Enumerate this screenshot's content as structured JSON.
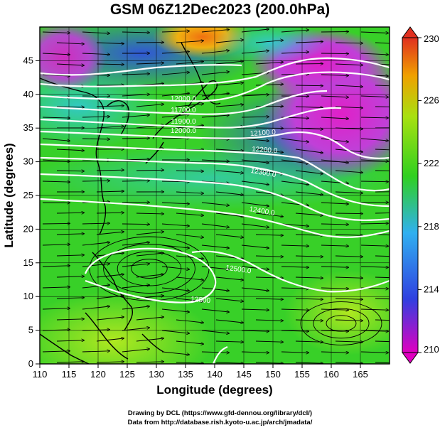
{
  "title": "GSM 06Z12Dec2023 (200.0hPa)",
  "x_axis": {
    "label": "Longitude (degrees)",
    "range": [
      110,
      170
    ],
    "ticks": [
      "110",
      "115",
      "120",
      "125",
      "130",
      "135",
      "140",
      "145",
      "150",
      "155",
      "160",
      "165"
    ]
  },
  "y_axis": {
    "label": "Latitude  (degrees)",
    "range": [
      0,
      50
    ],
    "ticks": [
      "0",
      "5",
      "10",
      "15",
      "20",
      "25",
      "30",
      "35",
      "40",
      "45"
    ]
  },
  "colorbar": {
    "ticks": [
      "210",
      "214",
      "218",
      "222",
      "226",
      "230"
    ],
    "range": [
      210,
      230
    ],
    "colors": [
      "#e000c0",
      "#3040e0",
      "#30b0f0",
      "#30d020",
      "#a8e010",
      "#f0a000",
      "#e03020"
    ]
  },
  "contour_labels": [
    {
      "text": "12000.0"
    },
    {
      "text": "11700.0"
    },
    {
      "text": "11900.0"
    },
    {
      "text": "12000.0"
    },
    {
      "text": "12100.0"
    },
    {
      "text": "12200.0"
    },
    {
      "text": "12300.0"
    },
    {
      "text": "12400.0"
    },
    {
      "text": "12500.0"
    },
    {
      "text": "12500"
    }
  ],
  "credits": {
    "line1": "Drawing by DCL (https://www.gfd-dennou.org/library/dcl/)",
    "line2": "Data from http://database.rish.kyoto-u.ac.jp/arch/jmadata/"
  }
}
